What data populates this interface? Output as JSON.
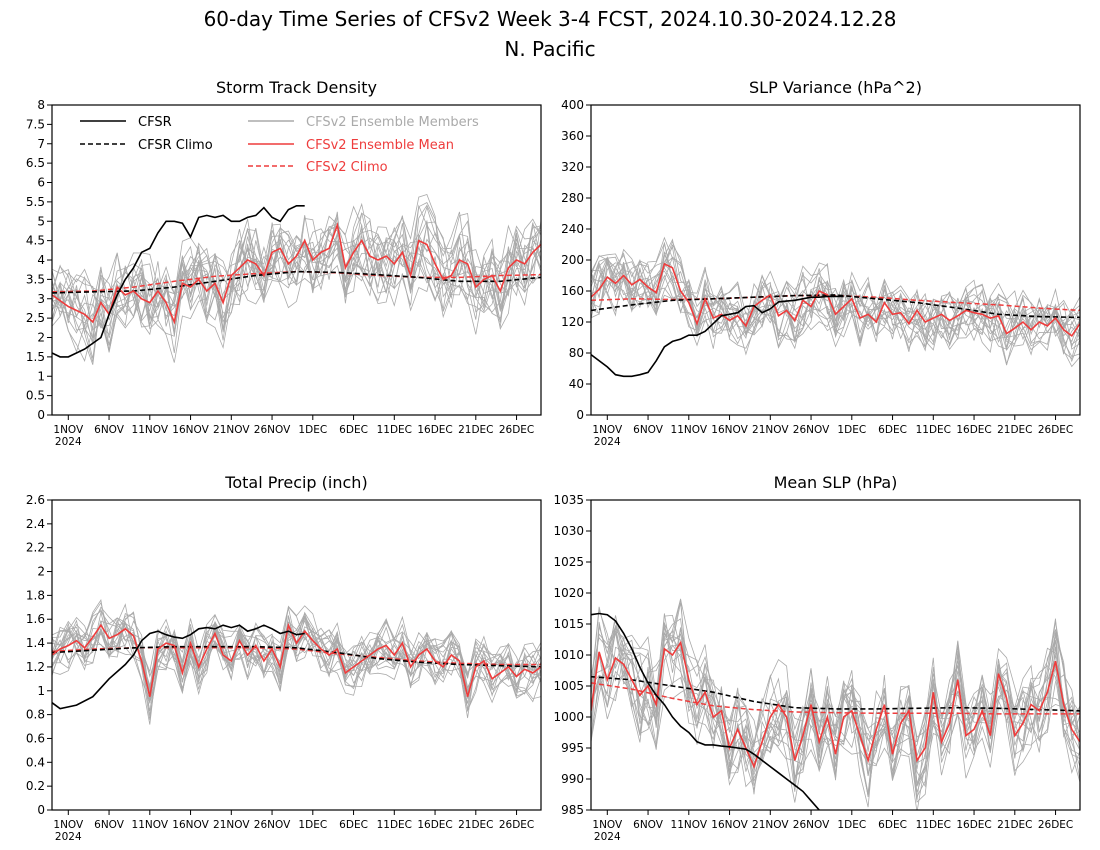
{
  "figure": {
    "title": "60-day Time Series of CFSv2 Week 3-4 FCST, 2024.10.30-2024.12.28",
    "subtitle": "N. Pacific"
  },
  "colors": {
    "cfsr": "#000000",
    "ensemble_members": "#aaaaaa",
    "ensemble_mean": "#ee3c3c",
    "axes": "#000000"
  },
  "x_axis": {
    "ticks": [
      "1NOV",
      "6NOV",
      "11NOV",
      "16NOV",
      "21NOV",
      "26NOV",
      "1DEC",
      "6DEC",
      "11DEC",
      "16DEC",
      "21DEC",
      "26DEC"
    ],
    "tick_days": [
      2,
      7,
      12,
      17,
      22,
      27,
      32,
      37,
      42,
      47,
      52,
      57
    ],
    "year_label": "2024",
    "day_range": [
      0,
      60
    ]
  },
  "legend": {
    "cfsr": "CFSR",
    "cfsr_climo": "CFSR Climo",
    "ensemble_members": "CFSv2 Ensemble Members",
    "ensemble_mean": "CFSv2 Ensemble Mean",
    "cfsv2_climo": "CFSv2 Climo"
  },
  "chart_data": [
    {
      "type": "line",
      "title": "Storm Track Density",
      "ylim": [
        0,
        8
      ],
      "yticks": [
        "0",
        "0.5",
        "1",
        "1.5",
        "2",
        "2.5",
        "3",
        "3.5",
        "4",
        "4.5",
        "5",
        "5.5",
        "6",
        "6.5",
        "7",
        "7.5",
        "8"
      ],
      "member_spread": 0.9,
      "series": {
        "cfsr": {
          "x": [
            0,
            1,
            2,
            4,
            6,
            7,
            8,
            9,
            10,
            11,
            12,
            13,
            14,
            15,
            16,
            17,
            18,
            19,
            20,
            21,
            22,
            23,
            24,
            25,
            26,
            27,
            28,
            29,
            30,
            31
          ],
          "y": [
            1.6,
            1.5,
            1.5,
            1.7,
            2.0,
            2.6,
            3.1,
            3.5,
            3.8,
            4.2,
            4.3,
            4.7,
            5.0,
            5.0,
            4.95,
            4.6,
            5.1,
            5.15,
            5.1,
            5.15,
            5.0,
            5.0,
            5.1,
            5.15,
            5.35,
            5.1,
            5.0,
            5.3,
            5.4,
            5.4
          ]
        },
        "cfsr_climo": {
          "x": [
            0,
            5,
            10,
            15,
            20,
            25,
            30,
            35,
            40,
            45,
            50,
            55,
            60
          ],
          "y": [
            3.15,
            3.18,
            3.2,
            3.3,
            3.45,
            3.6,
            3.7,
            3.68,
            3.62,
            3.55,
            3.45,
            3.45,
            3.55
          ]
        },
        "ensemble_mean": {
          "x": [
            0,
            2,
            4,
            5,
            6,
            7,
            8,
            9,
            10,
            11,
            12,
            13,
            14,
            15,
            16,
            17,
            18,
            19,
            20,
            21,
            22,
            23,
            24,
            25,
            26,
            27,
            28,
            29,
            30,
            31,
            32,
            33,
            34,
            35,
            36,
            37,
            38,
            39,
            40,
            41,
            42,
            43,
            44,
            45,
            46,
            47,
            48,
            49,
            50,
            51,
            52,
            53,
            54,
            55,
            56,
            57,
            58,
            59,
            60
          ],
          "y": [
            3.1,
            2.8,
            2.6,
            2.4,
            2.9,
            2.6,
            3.3,
            3.1,
            3.2,
            3.0,
            2.9,
            3.2,
            2.9,
            2.4,
            3.4,
            3.3,
            3.5,
            3.2,
            3.4,
            2.9,
            3.6,
            3.8,
            4.0,
            3.9,
            3.6,
            4.2,
            4.3,
            3.9,
            4.1,
            4.5,
            4.0,
            4.2,
            4.3,
            4.9,
            3.8,
            4.2,
            4.5,
            4.1,
            4.0,
            4.1,
            3.9,
            4.2,
            3.6,
            4.5,
            4.4,
            3.9,
            3.5,
            3.6,
            4.0,
            3.9,
            3.3,
            3.5,
            3.6,
            3.2,
            3.8,
            4.0,
            3.9,
            4.2,
            4.4
          ]
        },
        "cfsv2_climo": {
          "x": [
            0,
            5,
            10,
            15,
            20,
            25,
            30,
            35,
            40,
            45,
            50,
            55,
            60
          ],
          "y": [
            3.18,
            3.2,
            3.3,
            3.45,
            3.58,
            3.65,
            3.7,
            3.67,
            3.6,
            3.55,
            3.55,
            3.6,
            3.62
          ]
        }
      }
    },
    {
      "type": "line",
      "title": "SLP Variance (hPa^2)",
      "ylim": [
        0,
        400
      ],
      "yticks": [
        "0",
        "40",
        "80",
        "120",
        "160",
        "200",
        "240",
        "280",
        "320",
        "360",
        "400"
      ],
      "member_spread": 35,
      "series": {
        "cfsr": {
          "x": [
            0,
            2,
            3,
            4,
            5,
            6,
            7,
            8,
            9,
            10,
            11,
            12,
            13,
            14,
            15,
            16,
            17,
            18,
            19,
            20,
            21,
            22,
            23,
            24,
            25,
            26,
            27,
            28,
            29,
            30,
            31
          ],
          "y": [
            78,
            62,
            52,
            50,
            50,
            52,
            55,
            70,
            88,
            95,
            98,
            103,
            103,
            108,
            118,
            128,
            130,
            132,
            140,
            141,
            132,
            137,
            146,
            147,
            148,
            150,
            152,
            152,
            153,
            153,
            153
          ]
        },
        "cfsr_climo": {
          "x": [
            0,
            5,
            10,
            15,
            20,
            25,
            30,
            35,
            40,
            45,
            50,
            55,
            60
          ],
          "y": [
            135,
            142,
            148,
            150,
            152,
            154,
            155,
            150,
            145,
            138,
            130,
            127,
            126
          ]
        },
        "ensemble_mean": {
          "x": [
            0,
            1,
            2,
            3,
            4,
            5,
            6,
            7,
            8,
            9,
            10,
            11,
            12,
            13,
            14,
            15,
            16,
            17,
            18,
            19,
            20,
            21,
            22,
            23,
            24,
            25,
            26,
            27,
            28,
            29,
            30,
            31,
            32,
            33,
            34,
            35,
            36,
            37,
            38,
            39,
            40,
            41,
            42,
            43,
            44,
            45,
            46,
            47,
            48,
            49,
            50,
            51,
            52,
            53,
            54,
            55,
            56,
            57,
            58,
            59,
            60
          ],
          "y": [
            152,
            162,
            178,
            170,
            180,
            168,
            175,
            165,
            158,
            195,
            190,
            160,
            145,
            118,
            150,
            125,
            130,
            122,
            128,
            115,
            140,
            148,
            155,
            128,
            135,
            122,
            148,
            140,
            160,
            155,
            130,
            140,
            150,
            125,
            130,
            120,
            145,
            130,
            132,
            118,
            135,
            120,
            125,
            130,
            122,
            128,
            135,
            132,
            130,
            125,
            128,
            105,
            112,
            120,
            110,
            120,
            115,
            125,
            110,
            102,
            118
          ]
        },
        "cfsv2_climo": {
          "x": [
            0,
            5,
            10,
            15,
            20,
            25,
            30,
            35,
            40,
            45,
            50,
            55,
            60
          ],
          "y": [
            148,
            150,
            149,
            150,
            152,
            154,
            154,
            152,
            148,
            145,
            142,
            138,
            135
          ]
        }
      }
    },
    {
      "type": "line",
      "title": "Total Precip (inch)",
      "ylim": [
        0,
        2.6
      ],
      "yticks": [
        "0",
        "0.2",
        "0.4",
        "0.6",
        "0.8",
        "1",
        "1.2",
        "1.4",
        "1.6",
        "1.8",
        "2",
        "2.2",
        "2.4",
        "2.6"
      ],
      "member_spread": 0.18,
      "series": {
        "cfsr": {
          "x": [
            0,
            1,
            3,
            5,
            7,
            9,
            10,
            11,
            12,
            13,
            14,
            15,
            16,
            17,
            18,
            19,
            20,
            21,
            22,
            23,
            24,
            25,
            26,
            27,
            28,
            29,
            30,
            31
          ],
          "y": [
            0.9,
            0.85,
            0.88,
            0.95,
            1.1,
            1.22,
            1.3,
            1.42,
            1.48,
            1.5,
            1.47,
            1.45,
            1.44,
            1.47,
            1.52,
            1.53,
            1.52,
            1.55,
            1.53,
            1.55,
            1.5,
            1.52,
            1.55,
            1.52,
            1.48,
            1.5,
            1.47,
            1.48
          ]
        },
        "cfsr_climo": {
          "x": [
            0,
            5,
            10,
            15,
            20,
            25,
            30,
            35,
            40,
            45,
            50,
            55,
            60
          ],
          "y": [
            1.32,
            1.34,
            1.36,
            1.37,
            1.37,
            1.37,
            1.36,
            1.32,
            1.27,
            1.24,
            1.22,
            1.21,
            1.2
          ]
        },
        "ensemble_mean": {
          "x": [
            0,
            1,
            2,
            3,
            4,
            5,
            6,
            7,
            8,
            9,
            10,
            11,
            12,
            13,
            14,
            15,
            16,
            17,
            18,
            19,
            20,
            21,
            22,
            23,
            24,
            25,
            26,
            27,
            28,
            29,
            30,
            31,
            32,
            33,
            34,
            35,
            36,
            37,
            38,
            39,
            40,
            41,
            42,
            43,
            44,
            45,
            46,
            47,
            48,
            49,
            50,
            51,
            52,
            53,
            54,
            55,
            56,
            57,
            58,
            59,
            60
          ],
          "y": [
            1.3,
            1.35,
            1.38,
            1.42,
            1.36,
            1.45,
            1.55,
            1.44,
            1.47,
            1.52,
            1.46,
            1.25,
            0.95,
            1.35,
            1.4,
            1.38,
            1.15,
            1.4,
            1.2,
            1.35,
            1.48,
            1.3,
            1.25,
            1.42,
            1.3,
            1.38,
            1.25,
            1.35,
            1.2,
            1.55,
            1.4,
            1.5,
            1.42,
            1.35,
            1.3,
            1.35,
            1.15,
            1.2,
            1.25,
            1.3,
            1.35,
            1.38,
            1.3,
            1.4,
            1.2,
            1.3,
            1.35,
            1.25,
            1.2,
            1.3,
            1.25,
            0.95,
            1.2,
            1.25,
            1.1,
            1.15,
            1.2,
            1.12,
            1.18,
            1.15,
            1.2
          ]
        },
        "cfsv2_climo": {
          "x": [
            0,
            5,
            10,
            15,
            20,
            25,
            30,
            35,
            40,
            45,
            50,
            55,
            60
          ],
          "y": [
            1.33,
            1.35,
            1.36,
            1.36,
            1.36,
            1.36,
            1.35,
            1.31,
            1.28,
            1.25,
            1.23,
            1.22,
            1.22
          ]
        }
      }
    },
    {
      "type": "line",
      "title": "Mean SLP (hPa)",
      "ylim": [
        985,
        1035
      ],
      "yticks": [
        "985",
        "990",
        "995",
        "1000",
        "1005",
        "1010",
        "1015",
        "1020",
        "1025",
        "1030",
        "1035"
      ],
      "member_spread": 6,
      "series": {
        "cfsr": {
          "x": [
            0,
            1,
            2,
            3,
            4,
            5,
            6,
            7,
            8,
            9,
            10,
            11,
            12,
            13,
            14,
            15,
            16,
            17,
            18,
            19,
            20,
            21,
            22,
            23,
            24,
            25,
            26,
            27,
            28
          ],
          "y": [
            1016.5,
            1016.7,
            1016.5,
            1015.5,
            1013.5,
            1011,
            1008,
            1005.5,
            1003.5,
            1002,
            1000,
            998.5,
            997.5,
            996,
            995.5,
            995.5,
            995.3,
            995.2,
            995,
            994.8,
            994,
            993,
            992,
            991,
            990,
            989,
            988,
            986.5,
            985
          ]
        },
        "cfsr_climo": {
          "x": [
            0,
            5,
            10,
            15,
            20,
            25,
            30,
            35,
            40,
            45,
            50,
            55,
            60
          ],
          "y": [
            1006.5,
            1006,
            1005,
            1004,
            1002.5,
            1001.5,
            1001.3,
            1001.3,
            1001.4,
            1001.5,
            1001.4,
            1001.2,
            1001
          ]
        },
        "ensemble_mean": {
          "x": [
            0,
            1,
            2,
            3,
            4,
            5,
            6,
            7,
            8,
            9,
            10,
            11,
            12,
            13,
            14,
            15,
            16,
            17,
            18,
            19,
            20,
            21,
            22,
            23,
            24,
            25,
            26,
            27,
            28,
            29,
            30,
            31,
            32,
            33,
            34,
            35,
            36,
            37,
            38,
            39,
            40,
            41,
            42,
            43,
            44,
            45,
            46,
            47,
            48,
            49,
            50,
            51,
            52,
            53,
            54,
            55,
            56,
            57,
            58,
            59,
            60
          ],
          "y": [
            1001,
            1010.5,
            1006,
            1009.5,
            1008.5,
            1006,
            1003.5,
            1005,
            1002,
            1011,
            1010,
            1012,
            1006,
            1002,
            1004,
            1000,
            1001,
            995,
            998,
            995,
            992,
            996,
            1000,
            1002,
            1000,
            993,
            997,
            1002,
            996,
            1000,
            994,
            1000,
            1001,
            997,
            993,
            998,
            1002,
            994,
            999,
            1001,
            993,
            995,
            1004,
            996,
            999,
            1006,
            997,
            998,
            1001,
            997,
            1007,
            1003,
            997,
            999,
            1002,
            1001,
            1004,
            1009,
            1002,
            998,
            996
          ]
        },
        "cfsv2_climo": {
          "x": [
            0,
            5,
            10,
            15,
            20,
            25,
            30,
            35,
            40,
            45,
            50,
            55,
            60
          ],
          "y": [
            1005.5,
            1004.5,
            1003,
            1001.8,
            1001.2,
            1000.8,
            1000.7,
            1000.6,
            1000.6,
            1000.6,
            1000.5,
            1000.5,
            1000.5
          ]
        }
      }
    }
  ]
}
